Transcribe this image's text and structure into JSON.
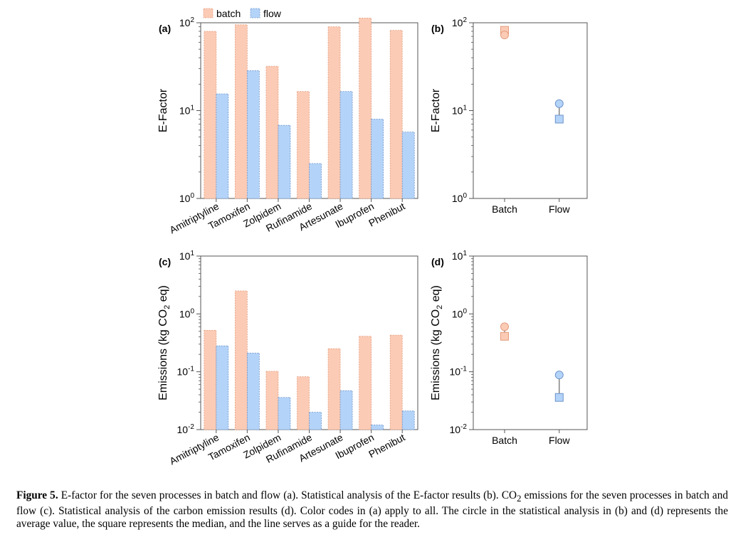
{
  "legend": [
    {
      "label": "batch",
      "color": "#fbcbb5",
      "stroke": "#e49c7e"
    },
    {
      "label": "flow",
      "color": "#b4d3f8",
      "stroke": "#6d95cc"
    }
  ],
  "chart_data": [
    {
      "id": "a",
      "panel_label": "(a)",
      "type": "bar",
      "yscale": "log",
      "ylabel": "E-Factor",
      "ylim": [
        1,
        100
      ],
      "yticks": [
        {
          "v": 1,
          "base": "10",
          "exp": "0"
        },
        {
          "v": 10,
          "base": "10",
          "exp": "1"
        },
        {
          "v": 100,
          "base": "10",
          "exp": "2"
        }
      ],
      "categories": [
        "Amitriptyline",
        "Tamoxifen",
        "Zolpidem",
        "Rufinamide",
        "Artesunate",
        "Ibuprofen",
        "Phenibut"
      ],
      "series": [
        {
          "name": "batch",
          "values": [
            80,
            95,
            32,
            16.5,
            90,
            113,
            82
          ]
        },
        {
          "name": "flow",
          "values": [
            15.5,
            28.5,
            6.8,
            2.5,
            16.5,
            8,
            5.7
          ]
        }
      ]
    },
    {
      "id": "b",
      "panel_label": "(b)",
      "type": "scatter",
      "yscale": "log",
      "ylabel": "E-Factor",
      "ylim": [
        1,
        100
      ],
      "yticks": [
        {
          "v": 1,
          "base": "10",
          "exp": "0"
        },
        {
          "v": 10,
          "base": "10",
          "exp": "1"
        },
        {
          "v": 100,
          "base": "10",
          "exp": "2"
        }
      ],
      "categories": [
        "Batch",
        "Flow"
      ],
      "series": [
        {
          "name": "average",
          "marker": "circle",
          "values": [
            72.6,
            12
          ]
        },
        {
          "name": "median",
          "marker": "square",
          "values": [
            82,
            8
          ]
        }
      ]
    },
    {
      "id": "c",
      "panel_label": "(c)",
      "type": "bar",
      "yscale": "log",
      "ylabel_parts": [
        "Emissions (kg CO",
        "2",
        " eq)"
      ],
      "ylim": [
        0.01,
        10
      ],
      "yticks": [
        {
          "v": 0.01,
          "base": "10",
          "exp": "-2"
        },
        {
          "v": 0.1,
          "base": "10",
          "exp": "-1"
        },
        {
          "v": 1,
          "base": "10",
          "exp": "0"
        },
        {
          "v": 10,
          "base": "10",
          "exp": "1"
        }
      ],
      "categories": [
        "Amitriptyline",
        "Tamoxifen",
        "Zolpidem",
        "Rufinamide",
        "Artesunate",
        "Ibuprofen",
        "Phenibut"
      ],
      "series": [
        {
          "name": "batch",
          "values": [
            0.52,
            2.5,
            0.102,
            0.082,
            0.25,
            0.41,
            0.43
          ]
        },
        {
          "name": "flow",
          "values": [
            0.28,
            0.21,
            0.036,
            0.02,
            0.047,
            0.012,
            0.021
          ]
        }
      ]
    },
    {
      "id": "d",
      "panel_label": "(d)",
      "type": "scatter",
      "yscale": "log",
      "ylabel_parts": [
        "Emissions (kg CO",
        "2",
        " eq)"
      ],
      "ylim": [
        0.01,
        10
      ],
      "yticks": [
        {
          "v": 0.01,
          "base": "10",
          "exp": "-2"
        },
        {
          "v": 0.1,
          "base": "10",
          "exp": "-1"
        },
        {
          "v": 1,
          "base": "10",
          "exp": "0"
        },
        {
          "v": 10,
          "base": "10",
          "exp": "1"
        }
      ],
      "categories": [
        "Batch",
        "Flow"
      ],
      "series": [
        {
          "name": "average",
          "marker": "circle",
          "values": [
            0.6,
            0.088
          ]
        },
        {
          "name": "median",
          "marker": "square",
          "values": [
            0.41,
            0.036
          ]
        }
      ]
    }
  ],
  "caption": {
    "label": "Figure 5.",
    "part1": " E-factor for the seven processes in batch and flow (a). Statistical analysis of the E-factor results (b). CO",
    "sub": "2",
    "part2": " emissions for the seven processes in batch and flow (c). Statistical analysis of the carbon emission results (d). Color codes in (a) apply to all. The circle in the statistical analysis in (b) and (d) represents the average value, the square represents the median, and the line serves as a guide for the reader."
  }
}
